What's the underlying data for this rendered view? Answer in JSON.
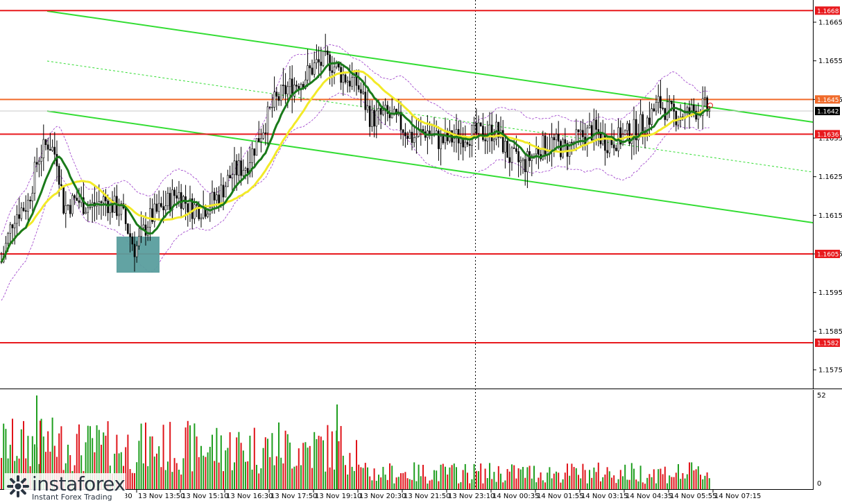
{
  "chart_data": {
    "type": "candlestick",
    "symbol_hint": "EUR/USD",
    "y_ticks": [
      "1.1665",
      "1.1655",
      "1.1645",
      "1.1635",
      "1.1625",
      "1.1615",
      "1.1605",
      "1.1595",
      "1.1585",
      "1.1575"
    ],
    "y_tick_values": [
      1.1665,
      1.1655,
      1.1645,
      1.1635,
      1.1625,
      1.1615,
      1.1605,
      1.1595,
      1.1585,
      1.1575
    ],
    "ylim": [
      1.15695,
      1.16755
    ],
    "x_ticks": [
      "13 Nov 13:50",
      "13 Nov 15:10",
      "13 Nov 16:30",
      "13 Nov 17:50",
      "13 Nov 19:10",
      "13 Nov 20:30",
      "13 Nov 21:50",
      "13 Nov 23:10",
      "14 Nov 00:35",
      "14 Nov 01:55",
      "14 Nov 03:15",
      "14 Nov 04:35",
      "14 Nov 05:55",
      "14 Nov 07:15"
    ],
    "x_partial_label": "30",
    "horizontal_levels": [
      {
        "label": "1.1668",
        "value": 1.1668,
        "color": "#e8191d"
      },
      {
        "label": "1.1645",
        "value": 1.1645,
        "color": "#f06a2a"
      },
      {
        "label": "1.1636",
        "value": 1.1636,
        "color": "#e8191d"
      },
      {
        "label": "1.1605",
        "value": 1.1605,
        "color": "#e8191d"
      },
      {
        "label": "1.1582",
        "value": 1.1582,
        "color": "#e8191d"
      }
    ],
    "current_price": {
      "label": "1.1642",
      "value": 1.1642
    },
    "volume_axis": {
      "max_label": "52",
      "min_label": "0"
    },
    "colors": {
      "bull": "#1f9e1f",
      "bear": "#e0141a",
      "candle": "#000000",
      "ma_fast": "#1a7a1a",
      "ma_slow": "#f2ea28",
      "channel": "#33dd33",
      "envelope": "#9a39c9",
      "level": "#e8191d",
      "highlight_box": "#5a9e9e"
    }
  },
  "branding": {
    "logo_name": "instaforex",
    "logo_tagline": "Instant Forex Trading"
  }
}
